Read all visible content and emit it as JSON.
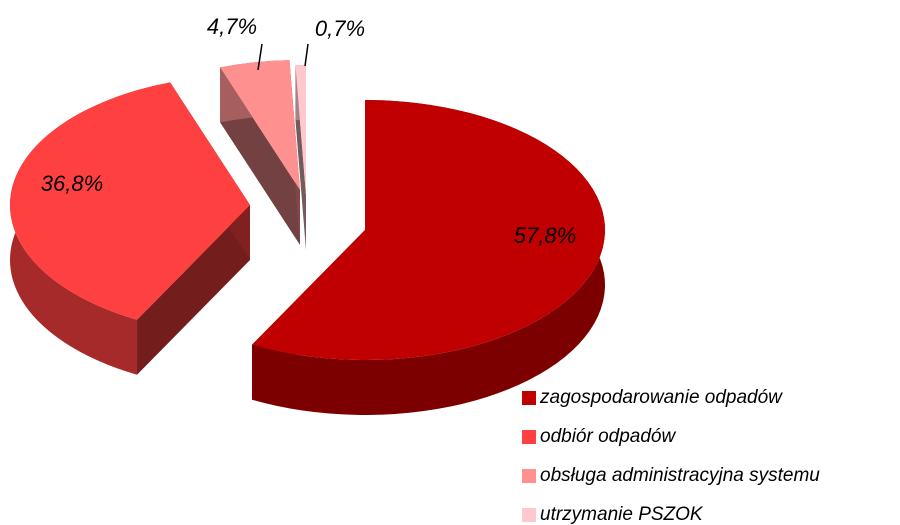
{
  "chart_data": {
    "type": "pie",
    "categories": [
      "zagospodarowanie odpadów",
      "odbiór odpadów",
      "obsługa administracyjna systemu",
      "utrzymanie PSZOK"
    ],
    "values": [
      57.8,
      36.8,
      4.7,
      0.7
    ],
    "value_labels": [
      "57,8%",
      "36,8%",
      "4,7%",
      "0,7%"
    ],
    "colors": [
      "#c00000",
      "#ff4040",
      "#ff9090",
      "#ffc8cc"
    ],
    "legend": "bottom-right"
  }
}
